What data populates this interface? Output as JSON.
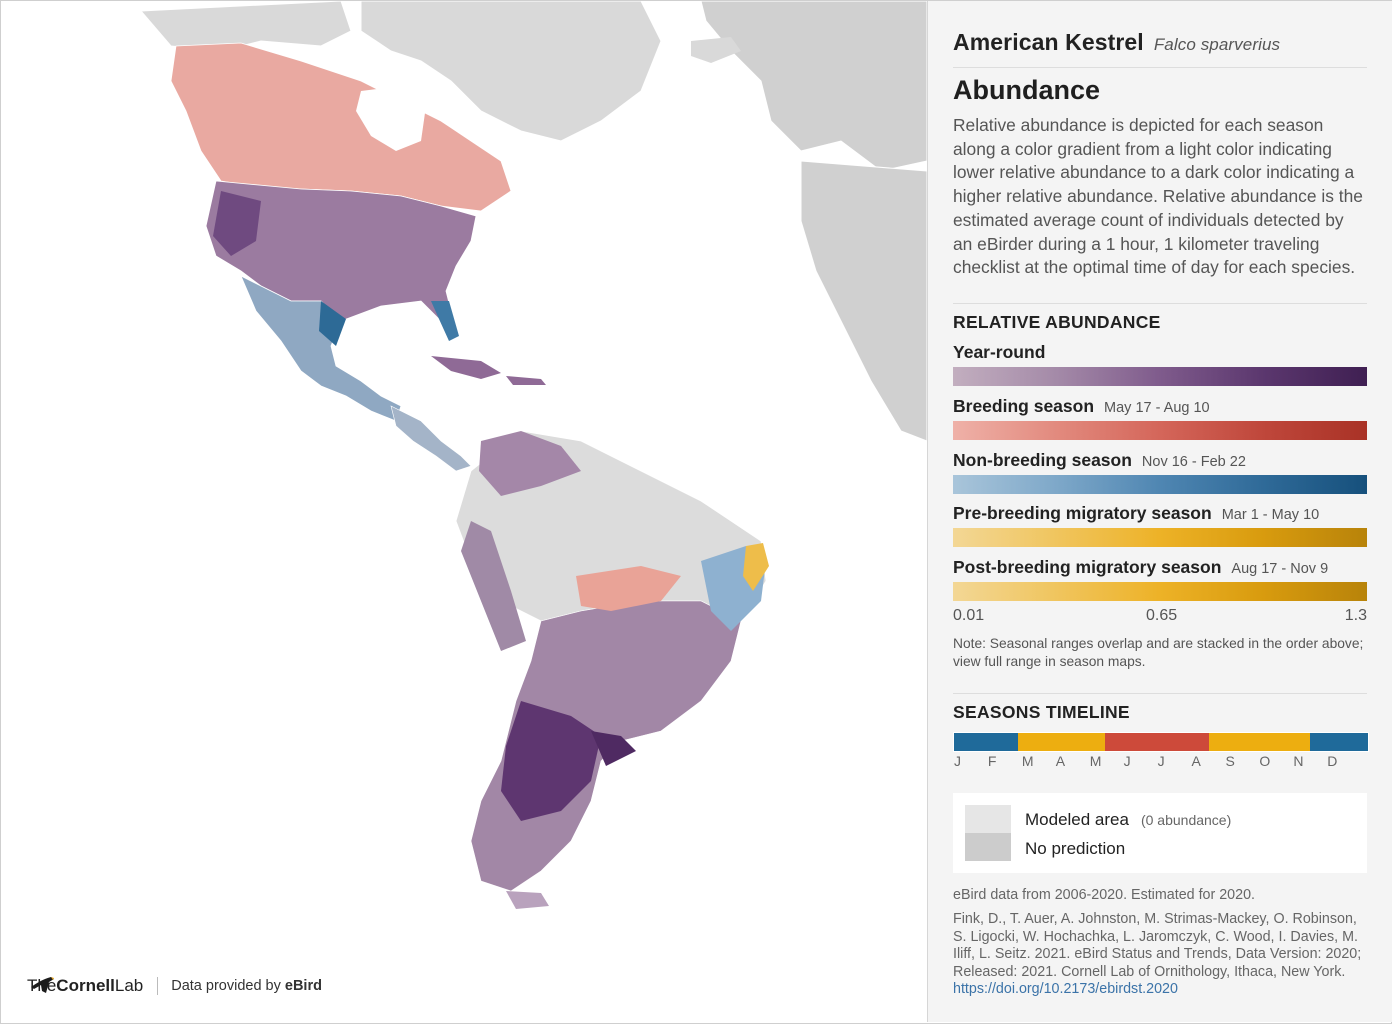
{
  "species": {
    "common_name": "American Kestrel",
    "scientific_name": "Falco sparverius"
  },
  "abundance": {
    "heading": "Abundance",
    "description": "Relative abundance is depicted for each season along a color gradient from a light color indicating lower relative abundance to a dark color indicating a higher relative abundance. Relative abundance is the estimated average count of individuals detected by an eBirder during a 1 hour, 1 kilometer traveling checklist at the optimal time of day for each species."
  },
  "legend": {
    "heading": "RELATIVE ABUNDANCE",
    "seasons": [
      {
        "name": "Year-round",
        "dates": "",
        "color": "#5b376e"
      },
      {
        "name": "Breeding season",
        "dates": "May 17 - Aug 10",
        "color": "#bf473b"
      },
      {
        "name": "Non-breeding season",
        "dates": "Nov 16 - Feb 22",
        "color": "#2f6a98"
      },
      {
        "name": "Pre-breeding migratory season",
        "dates": "Mar 1 - May 10",
        "color": "#edb227"
      },
      {
        "name": "Post-breeding migratory season",
        "dates": "Aug 17 - Nov 9",
        "color": "#edb227"
      }
    ],
    "scale": {
      "min": "0.01",
      "mid": "0.65",
      "max": "1.3"
    },
    "note": "Note: Seasonal ranges overlap and are stacked in the order above; view full range in season maps."
  },
  "timeline": {
    "heading": "SEASONS TIMELINE",
    "months": [
      "J",
      "F",
      "M",
      "A",
      "M",
      "J",
      "J",
      "A",
      "S",
      "O",
      "N",
      "D"
    ],
    "segments": [
      {
        "season": "non-breeding",
        "color": "#1f6a9a",
        "fraction": 0.155
      },
      {
        "season": "pre-breeding",
        "color": "#edae10",
        "fraction": 0.21
      },
      {
        "season": "breeding",
        "color": "#cd4a3a",
        "fraction": 0.25
      },
      {
        "season": "post-breeding",
        "color": "#edae10",
        "fraction": 0.245
      },
      {
        "season": "non-breeding",
        "color": "#1f6a9a",
        "fraction": 0.14
      }
    ]
  },
  "key": {
    "modeled_label": "Modeled area",
    "modeled_sub": "(0 abundance)",
    "modeled_color": "#e6e6e6",
    "no_prediction_label": "No prediction",
    "no_prediction_color": "#cccccc"
  },
  "source": {
    "years": "eBird data from 2006-2020. Estimated for 2020.",
    "citation": "Fink, D., T. Auer, A. Johnston, M. Strimas-Mackey, O. Robinson, S. Ligocki, W. Hochachka, L. Jaromczyk, C. Wood, I. Davies, M. Iliff, L. Seitz. 2021. eBird Status and Trends, Data Version: 2020; Released: 2021. Cornell Lab of Ornithology, Ithaca, New York.",
    "doi": "https://doi.org/10.2173/ebirdst.2020"
  },
  "logo": {
    "the": "The",
    "cornell": "Cornell",
    "lab": "Lab",
    "provided_prefix": "Data provided by",
    "provided_brand": "eBird"
  }
}
